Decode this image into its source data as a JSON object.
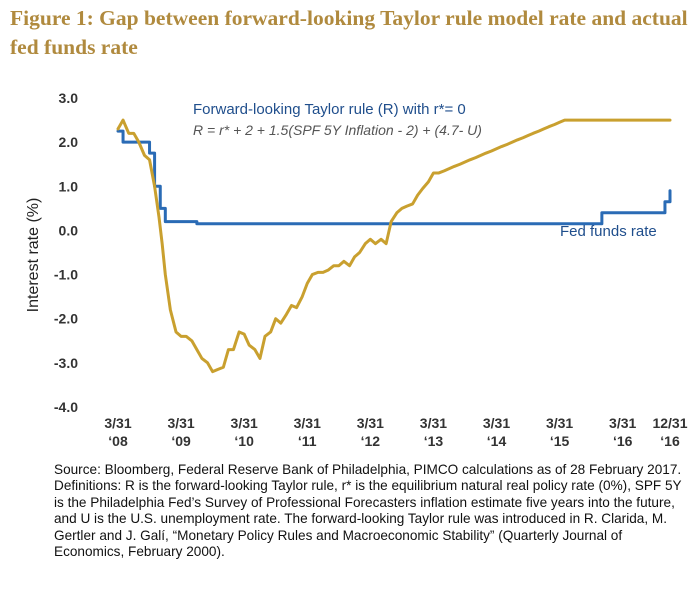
{
  "title": "Figure 1: Gap between forward-looking Taylor rule model rate and actual fed funds rate",
  "source_text": "Source: Bloomberg, Federal Reserve Bank of Philadelphia, PIMCO calculations as of 28 February 2017. Definitions: R is the forward-looking Taylor rule, r* is the equilibrium natural real policy rate (0%), SPF 5Y is the Philadelphia Fed’s Survey of Professional Forecasters inflation estimate five years into the future, and U is the U.S. unemployment rate. The forward-looking Taylor rule was introduced in R. Clarida, M. Gertler and J. Galí, “Monetary Policy Rules and Macroeconomic Stability” (Quarterly Journal of Economics, February 2000).",
  "chart_data": {
    "type": "line",
    "title": "Figure 1: Gap between forward-looking Taylor rule model rate and actual fed funds rate",
    "ylabel": "Interest rate (%)",
    "xlabel": "",
    "ylim": [
      -4.0,
      3.0
    ],
    "xlim": [
      2008.25,
      2017.0
    ],
    "grid": false,
    "y_ticks": [
      {
        "value": 3.0,
        "label": "3.0"
      },
      {
        "value": 2.0,
        "label": "2.0"
      },
      {
        "value": 1.0,
        "label": "1.0"
      },
      {
        "value": 0.0,
        "label": "0.0"
      },
      {
        "value": -1.0,
        "label": "-1.0"
      },
      {
        "value": -2.0,
        "label": "-2.0"
      },
      {
        "value": -3.0,
        "label": "-3.0"
      },
      {
        "value": -4.0,
        "label": "-4.0"
      }
    ],
    "x_ticks": [
      {
        "value": 2008.25,
        "line1": "3/31",
        "line2": "‘08"
      },
      {
        "value": 2009.25,
        "line1": "3/31",
        "line2": "‘09"
      },
      {
        "value": 2010.25,
        "line1": "3/31",
        "line2": "‘10"
      },
      {
        "value": 2011.25,
        "line1": "3/31",
        "line2": "‘11"
      },
      {
        "value": 2012.25,
        "line1": "3/31",
        "line2": "‘12"
      },
      {
        "value": 2013.25,
        "line1": "3/31",
        "line2": "‘13"
      },
      {
        "value": 2014.25,
        "line1": "3/31",
        "line2": "‘14"
      },
      {
        "value": 2015.25,
        "line1": "3/31",
        "line2": "‘15"
      },
      {
        "value": 2016.25,
        "line1": "3/31",
        "line2": "‘16"
      },
      {
        "value": 2017.0,
        "line1": "12/31",
        "line2": "‘16"
      }
    ],
    "annotations": {
      "taylor_label": "Forward-looking Taylor rule (R) with r*= 0",
      "formula": "R = r* + 2 + 1.5(SPF 5Y Inflation - 2) + (4.7- U)",
      "fed_label": "Fed funds rate"
    },
    "series": [
      {
        "name": "Forward-looking Taylor rule (R) with r*= 0",
        "color": "#c9a02f",
        "x": [
          2008.25,
          2008.33,
          2008.42,
          2008.5,
          2008.58,
          2008.67,
          2008.75,
          2008.83,
          2008.9,
          2008.95,
          2009.0,
          2009.08,
          2009.17,
          2009.25,
          2009.33,
          2009.42,
          2009.5,
          2009.58,
          2009.67,
          2009.75,
          2009.83,
          2009.92,
          2010.0,
          2010.08,
          2010.17,
          2010.25,
          2010.33,
          2010.42,
          2010.5,
          2010.58,
          2010.67,
          2010.75,
          2010.83,
          2010.92,
          2011.0,
          2011.08,
          2011.17,
          2011.25,
          2011.33,
          2011.42,
          2011.5,
          2011.58,
          2011.67,
          2011.75,
          2011.83,
          2011.92,
          2012.0,
          2012.08,
          2012.17,
          2012.25,
          2012.33,
          2012.42,
          2012.5,
          2012.58,
          2012.67,
          2012.75,
          2012.83,
          2012.92,
          2013.0,
          2013.08,
          2013.17,
          2013.25,
          2013.33,
          2013.42,
          2013.5,
          2013.58,
          2013.67,
          2013.75,
          2013.83,
          2013.92,
          2014.0,
          2014.08,
          2014.17,
          2014.25,
          2014.33,
          2014.42,
          2014.5,
          2014.58,
          2014.67,
          2014.75,
          2014.83,
          2014.92,
          2015.0,
          2015.08,
          2015.17,
          2015.25,
          2015.33,
          2015.42,
          2015.5,
          2015.58,
          2015.67,
          2015.75,
          2015.83,
          2015.92,
          2016.0,
          2016.08,
          2016.17,
          2016.25,
          2016.33,
          2016.42,
          2016.5,
          2016.58,
          2016.67,
          2016.75,
          2016.83,
          2016.92,
          2017.0
        ],
        "values": [
          2.3,
          2.5,
          2.2,
          2.2,
          2.0,
          1.7,
          1.6,
          1.0,
          0.3,
          -0.3,
          -1.0,
          -1.8,
          -2.3,
          -2.4,
          -2.4,
          -2.5,
          -2.7,
          -2.9,
          -3.0,
          -3.2,
          -3.15,
          -3.1,
          -2.7,
          -2.7,
          -2.3,
          -2.35,
          -2.6,
          -2.7,
          -2.9,
          -2.4,
          -2.3,
          -2.0,
          -2.1,
          -1.9,
          -1.7,
          -1.75,
          -1.5,
          -1.2,
          -1.0,
          -0.95,
          -0.95,
          -0.9,
          -0.8,
          -0.8,
          -0.7,
          -0.8,
          -0.6,
          -0.5,
          -0.3,
          -0.2,
          -0.3,
          -0.2,
          -0.3,
          0.2,
          0.4,
          0.5,
          0.55,
          0.6,
          0.8,
          0.95,
          1.1,
          1.3,
          1.3,
          1.35,
          1.4,
          1.45,
          1.5,
          1.55,
          1.6,
          1.65,
          1.7,
          1.75,
          1.8,
          1.85,
          1.9,
          1.95,
          2.0,
          2.05,
          2.1,
          2.15,
          2.2,
          2.25,
          2.3,
          2.35,
          2.4,
          2.45,
          2.5,
          2.5,
          2.5,
          2.5,
          2.5,
          2.5,
          2.5,
          2.5,
          2.5,
          2.5,
          2.5,
          2.5,
          2.5,
          2.5,
          2.5,
          2.5,
          2.5,
          2.5,
          2.5,
          2.5,
          2.5
        ]
      },
      {
        "name": "Fed funds rate",
        "color": "#2a6bb5",
        "x": [
          2008.25,
          2008.33,
          2008.42,
          2008.5,
          2008.58,
          2008.67,
          2008.75,
          2008.83,
          2008.92,
          2009.0,
          2009.5,
          2010.0,
          2011.0,
          2012.0,
          2013.0,
          2014.0,
          2015.0,
          2015.92,
          2016.0,
          2016.5,
          2016.92,
          2017.0
        ],
        "values": [
          2.25,
          2.0,
          2.0,
          2.0,
          2.0,
          2.0,
          1.75,
          1.0,
          0.5,
          0.2,
          0.15,
          0.15,
          0.15,
          0.15,
          0.15,
          0.15,
          0.15,
          0.4,
          0.4,
          0.4,
          0.65,
          0.9
        ]
      }
    ]
  }
}
